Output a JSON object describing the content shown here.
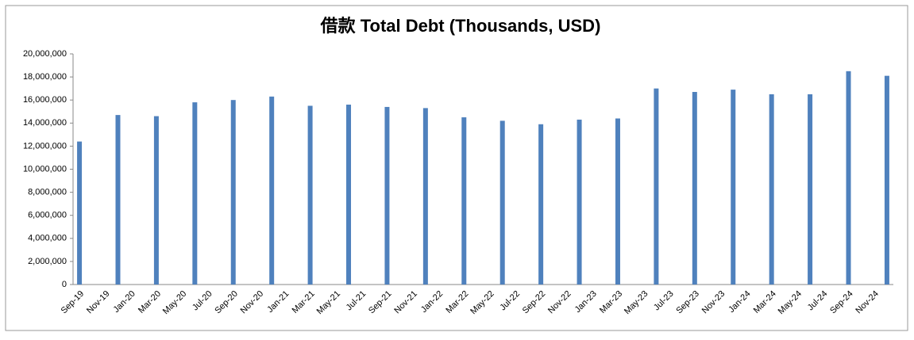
{
  "chart_data": {
    "type": "bar",
    "title": "借款 Total Debt (Thousands, USD)",
    "categories": [
      "Sep-19",
      null,
      "Nov-19",
      null,
      "Jan-20",
      null,
      "Mar-20",
      null,
      "May-20",
      null,
      "Jul-20",
      null,
      "Sep-20",
      null,
      "Nov-20",
      null,
      "Jan-21",
      null,
      "Mar-21",
      null,
      "May-21",
      null,
      "Jul-21",
      null,
      "Sep-21",
      null,
      "Nov-21",
      null,
      "Jan-22",
      null,
      "Mar-22",
      null,
      "May-22",
      null,
      "Jul-22",
      null,
      "Sep-22",
      null,
      "Nov-22",
      null,
      "Jan-23",
      null,
      "Mar-23",
      null,
      "May-23",
      null,
      "Jul-23",
      null,
      "Sep-23",
      null,
      "Nov-23",
      null,
      "Jan-24",
      null,
      "Mar-24",
      null,
      "May-24",
      null,
      "Jul-24",
      null,
      "Sep-24",
      null,
      "Nov-24",
      null
    ],
    "values": [
      12400000,
      null,
      null,
      14700000,
      null,
      null,
      14600000,
      null,
      null,
      15800000,
      null,
      null,
      16000000,
      null,
      null,
      16300000,
      null,
      null,
      15500000,
      null,
      null,
      15600000,
      null,
      null,
      15400000,
      null,
      null,
      15300000,
      null,
      null,
      14500000,
      null,
      null,
      14200000,
      null,
      null,
      13900000,
      null,
      null,
      14300000,
      null,
      null,
      14400000,
      null,
      null,
      17000000,
      null,
      null,
      16700000,
      null,
      null,
      16900000,
      null,
      null,
      16500000,
      null,
      null,
      16500000,
      null,
      null,
      18500000,
      null,
      null,
      18100000
    ],
    "color": "#4f81bd",
    "ylim": [
      0,
      20000000
    ],
    "yticks": [
      0,
      {
        "value": 2000000,
        "label": "2,000,000"
      },
      {
        "value": 4000000,
        "label": "4,000,000"
      },
      {
        "value": 6000000,
        "label": "6,000,000"
      },
      {
        "value": 8000000,
        "label": "8,000,000"
      },
      {
        "value": 10000000,
        "label": "10,000,000"
      },
      {
        "value": 12000000,
        "label": "12,000,000"
      },
      {
        "value": 14000000,
        "label": "14,000,000"
      },
      {
        "value": 16000000,
        "label": "16,000,000"
      },
      {
        "value": 18000000,
        "label": "18,000,000"
      },
      {
        "value": 20000000,
        "label": "20,000,000"
      }
    ]
  }
}
